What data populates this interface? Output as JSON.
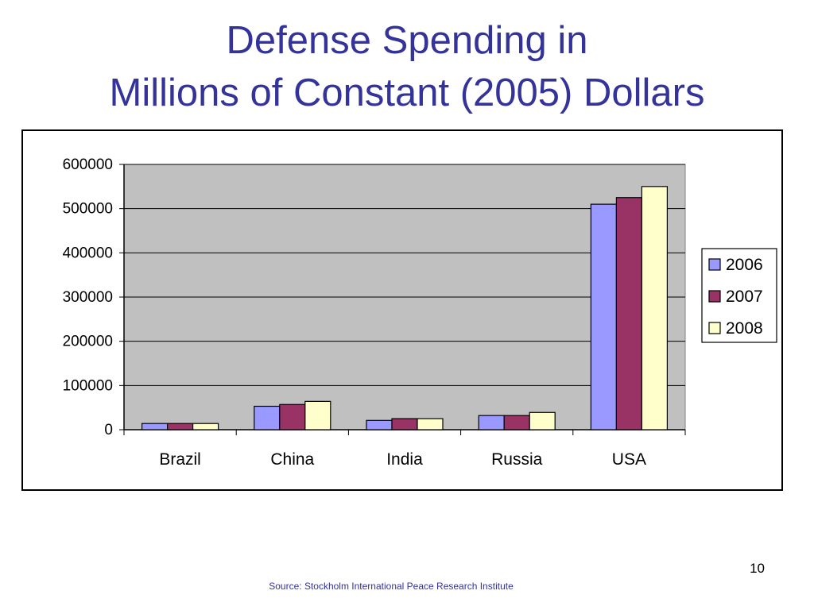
{
  "slide": {
    "title_line1": "Defense Spending in",
    "title_line2": "Millions of Constant (2005) Dollars",
    "page_number": "10",
    "source": "Source:  Stockholm International Peace Research Institute"
  },
  "chart_data": {
    "type": "bar",
    "title": "",
    "xlabel": "",
    "ylabel": "",
    "categories": [
      "Brazil",
      "China",
      "India",
      "Russia",
      "USA"
    ],
    "series": [
      {
        "name": "2006",
        "values": [
          14000,
          53000,
          21000,
          32000,
          510000
        ],
        "color": "#9999ff"
      },
      {
        "name": "2007",
        "values": [
          14000,
          57000,
          25000,
          32000,
          525000
        ],
        "color": "#993366"
      },
      {
        "name": "2008",
        "values": [
          14000,
          64000,
          25000,
          39000,
          550000
        ],
        "color": "#ffffcc"
      }
    ],
    "ylim": [
      0,
      600000
    ],
    "yticks": [
      "0",
      "100000",
      "200000",
      "300000",
      "400000",
      "500000",
      "600000"
    ],
    "grid": true,
    "plot_background": "#c0c0c0",
    "legend_position": "right"
  }
}
